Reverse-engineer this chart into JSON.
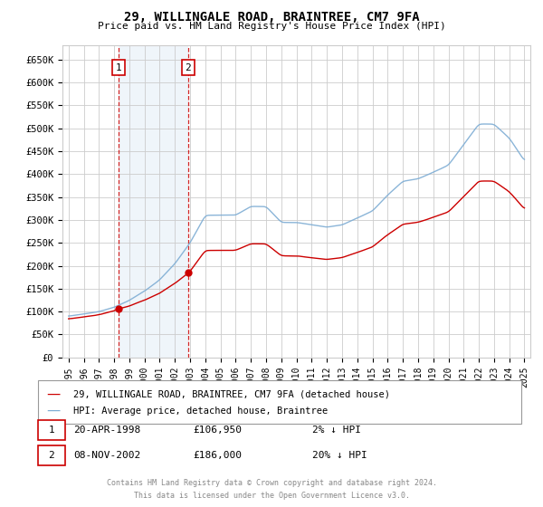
{
  "title1": "29, WILLINGALE ROAD, BRAINTREE, CM7 9FA",
  "title2": "Price paid vs. HM Land Registry's House Price Index (HPI)",
  "ylabel_ticks": [
    "£0",
    "£50K",
    "£100K",
    "£150K",
    "£200K",
    "£250K",
    "£300K",
    "£350K",
    "£400K",
    "£450K",
    "£500K",
    "£550K",
    "£600K",
    "£650K"
  ],
  "ytick_values": [
    0,
    50000,
    100000,
    150000,
    200000,
    250000,
    300000,
    350000,
    400000,
    450000,
    500000,
    550000,
    600000,
    650000
  ],
  "ylim": [
    0,
    680000
  ],
  "xlim_start": 1994.6,
  "xlim_end": 2025.4,
  "sale1_date": 1998.3,
  "sale1_price": 106950,
  "sale2_date": 2002.87,
  "sale2_price": 186000,
  "sale_color": "#cc0000",
  "hpi_color": "#7eadd4",
  "shading_color": "#d8e8f3",
  "grid_color": "#cccccc",
  "background_color": "#ffffff",
  "legend_house_label": "29, WILLINGALE ROAD, BRAINTREE, CM7 9FA (detached house)",
  "legend_hpi_label": "HPI: Average price, detached house, Braintree",
  "table_row1": [
    "1",
    "20-APR-1998",
    "£106,950",
    "2% ↓ HPI"
  ],
  "table_row2": [
    "2",
    "08-NOV-2002",
    "£186,000",
    "20% ↓ HPI"
  ],
  "footer1": "Contains HM Land Registry data © Crown copyright and database right 2024.",
  "footer2": "This data is licensed under the Open Government Licence v3.0."
}
